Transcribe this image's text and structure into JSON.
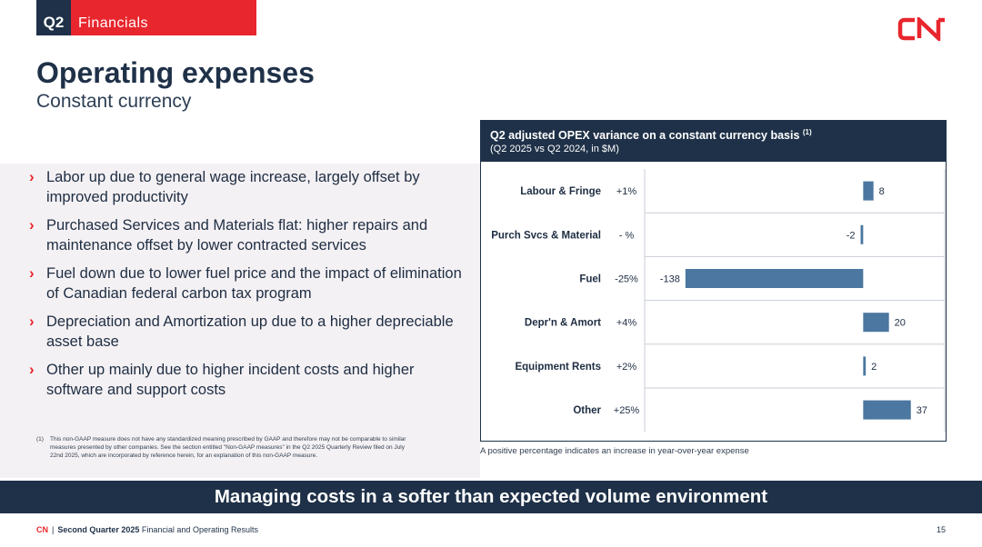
{
  "header": {
    "quarter": "Q2",
    "section": "Financials"
  },
  "brand": {
    "logo_text": "CN",
    "accent_color": "#e8262d",
    "navy_color": "#1f3148",
    "bar_color": "#4b77a0"
  },
  "title": "Operating expenses",
  "subtitle": "Constant currency",
  "bullets": [
    "Labor up due to general wage increase, largely offset by improved productivity",
    "Purchased Services and Materials flat: higher repairs and maintenance offset by lower contracted services",
    "Fuel down due to lower fuel price and the impact of elimination of Canadian federal carbon tax program",
    "Depreciation and Amortization up due to a higher depreciable asset base",
    "Other up mainly due to higher incident costs and higher software and support costs"
  ],
  "footnote": {
    "number": "(1)",
    "text": "This non-GAAP measure does not have any standardized meaning prescribed by GAAP and therefore may not be comparable to similar measures presented by other companies. See the section entitled \"Non-GAAP measures\" in the Q2 2025 Quarterly Review filed on July 22nd 2025, which are incorporated by reference herein, for an explanation of this non-GAAP measure."
  },
  "chart_title": "Q2 adjusted OPEX variance on a constant currency basis",
  "chart_title_sup": "(1)",
  "chart_subtitle": "(Q2 2025 vs Q2 2024, in $M)",
  "chart_note": "A positive percentage indicates an increase in year-over-year expense",
  "chart_data": {
    "type": "bar",
    "orientation": "horizontal",
    "categories": [
      "Labour & Fringe",
      "Purch Svcs & Material",
      "Fuel",
      "Depr'n & Amort",
      "Equipment Rents",
      "Other"
    ],
    "percent_labels": [
      "+1%",
      "- %",
      "-25%",
      "+4%",
      "+2%",
      "+25%"
    ],
    "values": [
      8,
      -2,
      -138,
      20,
      2,
      37
    ],
    "value_labels": [
      "8",
      "-2",
      "-138",
      "20",
      "2",
      "37"
    ],
    "xlim": [
      -140,
      40
    ],
    "grid": true,
    "legend": "none"
  },
  "banner": "Managing costs in a softer than expected volume environment",
  "footer": {
    "brand": "CN",
    "separator": "|",
    "bold_text": "Second Quarter 2025",
    "text": "Financial and Operating Results",
    "page": "15"
  }
}
